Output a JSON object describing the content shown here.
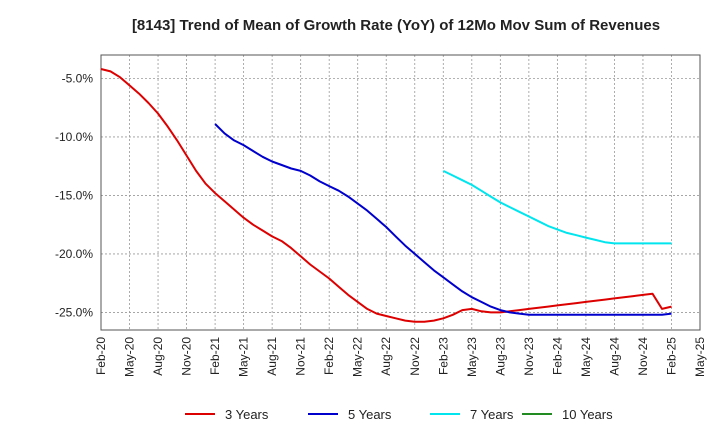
{
  "chart_data": {
    "type": "line",
    "title": "[8143]  Trend of Mean of Growth Rate (YoY) of 12Mo Mov Sum of Revenues",
    "xlabel": "",
    "ylabel": "",
    "x_tick_labels": [
      "Feb-20",
      "May-20",
      "Aug-20",
      "Nov-20",
      "Feb-21",
      "May-21",
      "Aug-21",
      "Nov-21",
      "Feb-22",
      "May-22",
      "Aug-22",
      "Nov-22",
      "Feb-23",
      "May-23",
      "Aug-23",
      "Nov-23",
      "Feb-24",
      "May-24",
      "Aug-24",
      "Nov-24",
      "Feb-25",
      "May-25"
    ],
    "y_ticks": [
      -5.0,
      -10.0,
      -15.0,
      -20.0,
      -25.0
    ],
    "y_tick_labels": [
      "-5.0%",
      "-10.0%",
      "-15.0%",
      "-20.0%",
      "-25.0%"
    ],
    "ylim": [
      -26.5,
      -3.0
    ],
    "x_range_months": [
      0,
      63
    ],
    "grid": true,
    "legend_position": "bottom",
    "series": [
      {
        "name": "3 Years",
        "color": "#dd0000",
        "x": [
          0,
          1,
          2,
          3,
          4,
          5,
          6,
          7,
          8,
          9,
          10,
          11,
          12,
          13,
          14,
          15,
          16,
          17,
          18,
          19,
          20,
          21,
          22,
          23,
          24,
          25,
          26,
          27,
          28,
          29,
          30,
          31,
          32,
          33,
          34,
          35,
          36,
          37,
          38,
          39,
          40,
          41,
          42,
          43,
          44,
          45,
          46,
          47,
          48,
          49,
          50,
          51,
          52,
          53,
          54,
          55,
          56,
          57,
          58,
          59,
          60
        ],
        "values": [
          -4.2,
          -4.4,
          -4.9,
          -5.6,
          -6.3,
          -7.1,
          -8.0,
          -9.1,
          -10.3,
          -11.6,
          -12.9,
          -14.0,
          -14.8,
          -15.5,
          -16.2,
          -16.9,
          -17.5,
          -18.0,
          -18.5,
          -18.9,
          -19.5,
          -20.2,
          -20.9,
          -21.5,
          -22.1,
          -22.8,
          -23.5,
          -24.1,
          -24.7,
          -25.1,
          -25.3,
          -25.5,
          -25.7,
          -25.8,
          -25.8,
          -25.7,
          -25.5,
          -25.2,
          -24.8,
          -24.7,
          -24.9,
          -25.0,
          -25.0,
          -24.9,
          -24.8,
          -24.7,
          -24.6,
          -24.5,
          -24.4,
          -24.3,
          -24.2,
          -24.1,
          -24.0,
          -23.9,
          -23.8,
          -23.7,
          -23.6,
          -23.5,
          -23.4,
          -24.7,
          -24.5
        ]
      },
      {
        "name": "5 Years",
        "color": "#0000cc",
        "x": [
          12,
          13,
          14,
          15,
          16,
          17,
          18,
          19,
          20,
          21,
          22,
          23,
          24,
          25,
          26,
          27,
          28,
          29,
          30,
          31,
          32,
          33,
          34,
          35,
          36,
          37,
          38,
          39,
          40,
          41,
          42,
          43,
          44,
          45,
          46,
          47,
          48,
          49,
          50,
          51,
          52,
          53,
          54,
          55,
          56,
          57,
          58,
          59,
          60
        ],
        "values": [
          -8.9,
          -9.7,
          -10.3,
          -10.7,
          -11.2,
          -11.7,
          -12.1,
          -12.4,
          -12.7,
          -12.9,
          -13.3,
          -13.8,
          -14.2,
          -14.6,
          -15.1,
          -15.7,
          -16.3,
          -17.0,
          -17.7,
          -18.5,
          -19.3,
          -20.0,
          -20.7,
          -21.4,
          -22.0,
          -22.6,
          -23.2,
          -23.7,
          -24.1,
          -24.5,
          -24.8,
          -25.0,
          -25.1,
          -25.2,
          -25.2,
          -25.2,
          -25.2,
          -25.2,
          -25.2,
          -25.2,
          -25.2,
          -25.2,
          -25.2,
          -25.2,
          -25.2,
          -25.2,
          -25.2,
          -25.2,
          -25.1
        ]
      },
      {
        "name": "7 Years",
        "color": "#00e5ee",
        "x": [
          36,
          37,
          38,
          39,
          40,
          41,
          42,
          43,
          44,
          45,
          46,
          47,
          48,
          49,
          50,
          51,
          52,
          53,
          54,
          55,
          56,
          57,
          58,
          59,
          60
        ],
        "values": [
          -12.9,
          -13.3,
          -13.7,
          -14.1,
          -14.6,
          -15.1,
          -15.6,
          -16.0,
          -16.4,
          -16.8,
          -17.2,
          -17.6,
          -17.9,
          -18.2,
          -18.4,
          -18.6,
          -18.8,
          -19.0,
          -19.1,
          -19.1,
          -19.1,
          -19.1,
          -19.1,
          -19.1,
          -19.1
        ]
      },
      {
        "name": "10 Years",
        "color": "#228b22",
        "x": [],
        "values": []
      }
    ]
  }
}
